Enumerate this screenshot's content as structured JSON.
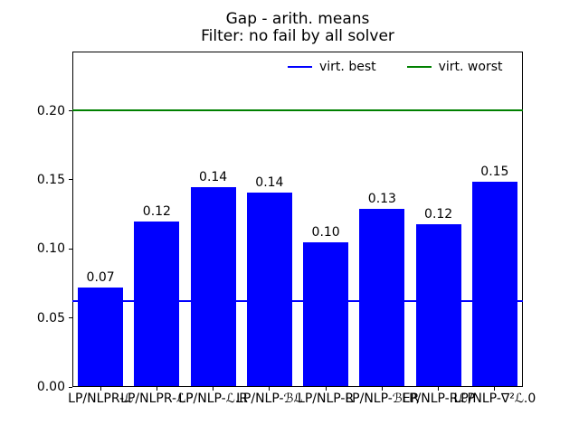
{
  "chart_data": {
    "type": "bar",
    "title_lines": [
      "Gap - arith. means",
      "Filter: no fail by all solver"
    ],
    "categories": [
      "LP/NLPR-ℒ",
      "LP/NLPR-ℒP",
      "LP/NLP-ℒ.R",
      "LP/NLP-ℬℒ",
      "LP/NLP-R",
      "LP/NLP-ℬER",
      "LP/NLP-RℒP",
      "LP/NLP-∇²ℒ.0"
    ],
    "values": [
      0.072,
      0.12,
      0.145,
      0.141,
      0.105,
      0.129,
      0.118,
      0.149
    ],
    "bar_value_labels": [
      "0.07",
      "0.12",
      "0.14",
      "0.14",
      "0.10",
      "0.13",
      "0.12",
      "0.15"
    ],
    "bar_color": "#0000ff",
    "xlabel": "",
    "ylabel": "",
    "ylim": [
      0,
      0.243
    ],
    "ytick_values": [
      0,
      0.05,
      0.1,
      0.15,
      0.2
    ],
    "ytick_labels": [
      "0.00",
      "0.05",
      "0.10",
      "0.15",
      "0.20"
    ],
    "grid": false,
    "reference_lines": [
      {
        "label": "virt. best",
        "value": 0.062,
        "color": "#0000ff"
      },
      {
        "label": "virt. worst",
        "value": 0.2005,
        "color": "#008000"
      }
    ],
    "legend": [
      {
        "label": "virt. best",
        "color": "#0000ff"
      },
      {
        "label": "virt. worst",
        "color": "#008000"
      }
    ],
    "legend_position": "upper center, horizontal"
  }
}
